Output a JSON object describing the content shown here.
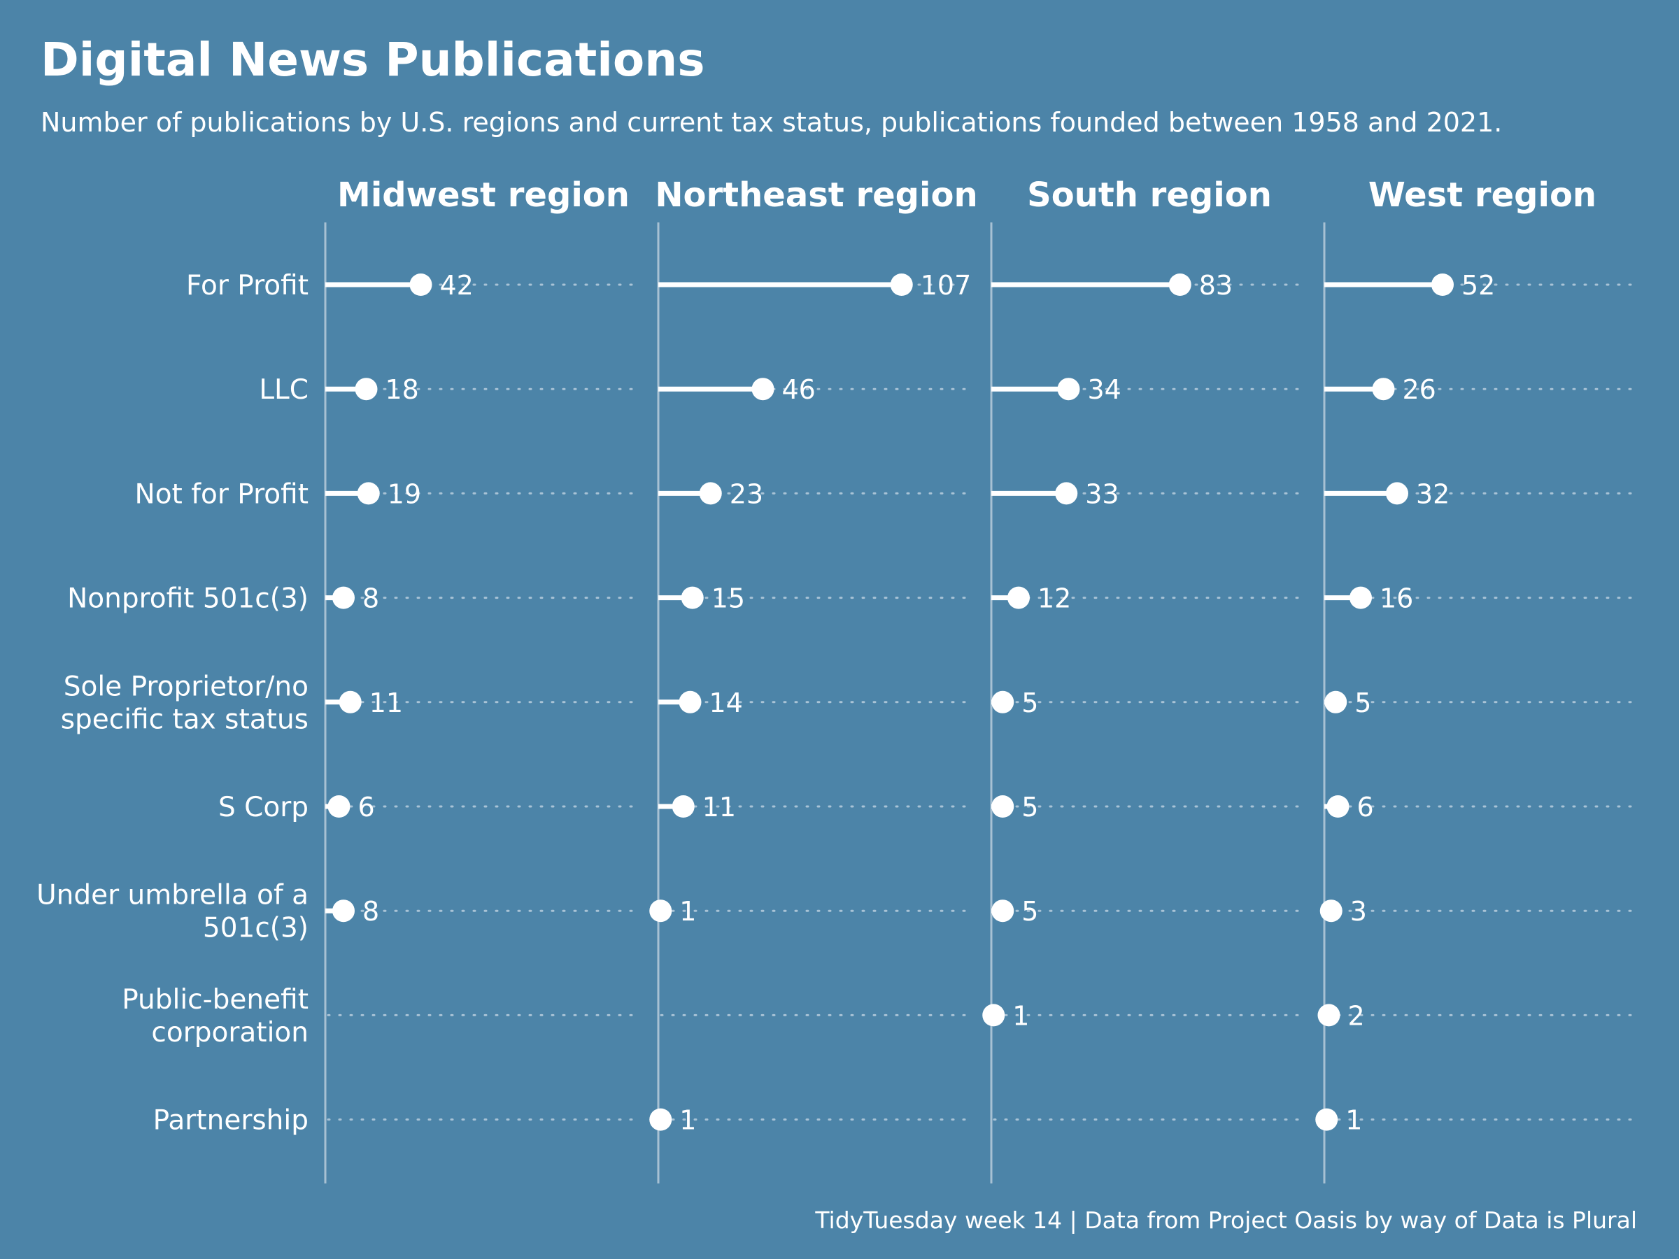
{
  "chart_data": {
    "type": "lollipop",
    "title": "Digital News Publications",
    "subtitle": "Number of publications by U.S. regions and current tax status, publications founded between 1958 and 2021.",
    "caption": "TidyTuesday week 14 | Data from Project Oasis by way of Data is Plural",
    "xlim": [
      0,
      110
    ],
    "grid": true,
    "categories": [
      [
        "For Profit"
      ],
      [
        "LLC"
      ],
      [
        "Not for Profit"
      ],
      [
        "Nonprofit 501c(3)"
      ],
      [
        "Sole Proprietor/no",
        "specific tax status"
      ],
      [
        "S Corp"
      ],
      [
        "Under umbrella of a",
        "501c(3)"
      ],
      [
        "Public-benefit",
        "corporation"
      ],
      [
        "Partnership"
      ]
    ],
    "facets": [
      {
        "name": "Midwest region",
        "values": [
          42,
          18,
          19,
          8,
          11,
          6,
          8,
          null,
          null
        ]
      },
      {
        "name": "Northeast region",
        "values": [
          107,
          46,
          23,
          15,
          14,
          11,
          1,
          null,
          1
        ]
      },
      {
        "name": "South region",
        "values": [
          83,
          34,
          33,
          12,
          5,
          5,
          5,
          1,
          null
        ]
      },
      {
        "name": "West region",
        "values": [
          52,
          26,
          32,
          16,
          5,
          6,
          3,
          2,
          1
        ]
      }
    ],
    "colors": {
      "background": "#4c84a8",
      "marks": "#ffffff",
      "axis": "#a7c1d3"
    }
  }
}
